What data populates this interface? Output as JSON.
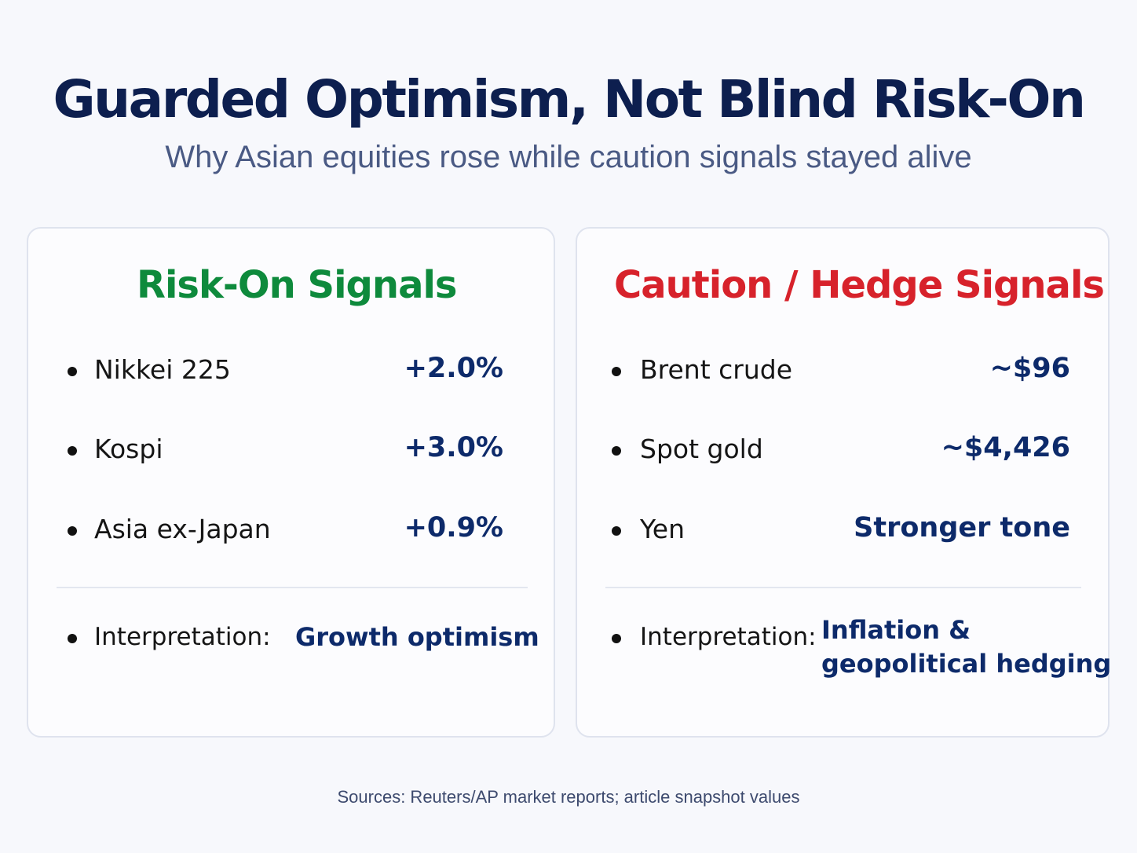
{
  "header": {
    "title": "Guarded Optimism, Not Blind Risk-On",
    "subtitle": "Why Asian equities rose while caution signals stayed alive"
  },
  "colors": {
    "title": "#0d1f4f",
    "risk_on_heading": "#0e8a3c",
    "caution_heading": "#d7222b",
    "value_text": "#0d2a6a"
  },
  "risk_on": {
    "heading": "Risk-On Signals",
    "items": [
      {
        "label": "Nikkei 225",
        "value": "+2.0%"
      },
      {
        "label": "Kospi",
        "value": "+3.0%"
      },
      {
        "label": "Asia ex-Japan",
        "value": "+0.9%"
      }
    ],
    "interpretation_label": "Interpretation:",
    "interpretation_value": "Growth optimism"
  },
  "caution": {
    "heading": "Caution / Hedge Signals",
    "items": [
      {
        "label": "Brent crude",
        "value": "~$96"
      },
      {
        "label": "Spot gold",
        "value": "~$4,426"
      },
      {
        "label": "Yen",
        "value": "Stronger tone"
      }
    ],
    "interpretation_label": "Interpretation:",
    "interpretation_value_line1": "Inflation &",
    "interpretation_value_line2": "geopolitical hedging"
  },
  "footer": {
    "sources": "Sources: Reuters/AP market reports; article snapshot values"
  }
}
